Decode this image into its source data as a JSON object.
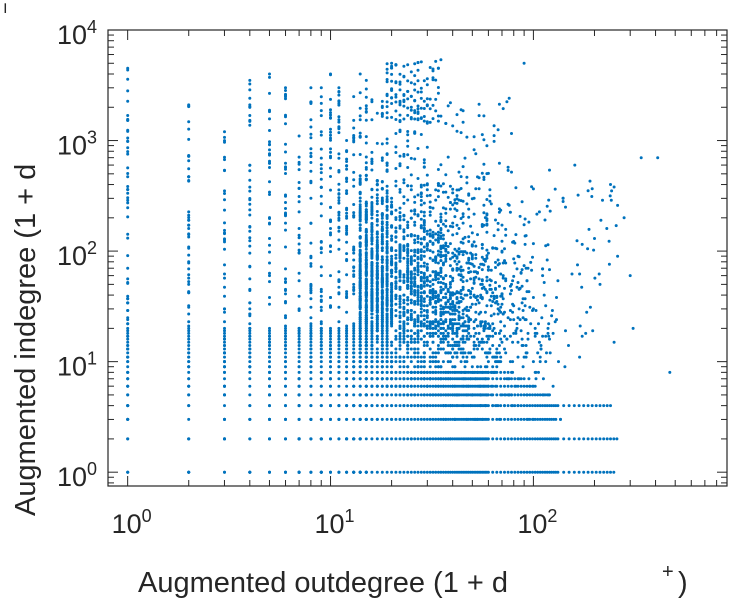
{
  "chart_data": {
    "type": "scatter",
    "title": "",
    "xlabel": "Augmented outdegree (1 + d",
    "xlabel_superscript": "+",
    "xlabel_close": ")",
    "ylabel": "Augmented indegree (1 + d",
    "ylabel_superscript": "−",
    "xscale": "log",
    "yscale": "log",
    "xlim": [
      0.8,
      900
    ],
    "ylim": [
      0.75,
      10000
    ],
    "grid": false,
    "legend": "none",
    "marker_color": "#0072BD",
    "x_ticks": [
      {
        "base": "10",
        "exp": "0",
        "value": 1
      },
      {
        "base": "10",
        "exp": "1",
        "value": 10
      },
      {
        "base": "10",
        "exp": "2",
        "value": 100
      }
    ],
    "y_ticks": [
      {
        "base": "10",
        "exp": "0",
        "value": 1
      },
      {
        "base": "10",
        "exp": "1",
        "value": 10
      },
      {
        "base": "10",
        "exp": "2",
        "value": 100
      },
      {
        "base": "10",
        "exp": "3",
        "value": 1000
      },
      {
        "base": "10",
        "exp": "4",
        "value": 10000
      }
    ],
    "columns": [
      {
        "x": 1,
        "ymin": 1,
        "ymax": 4500,
        "points": 70
      },
      {
        "x": 2,
        "ymin": 1,
        "ymax": 2100,
        "points": 60
      },
      {
        "x": 3,
        "ymin": 1,
        "ymax": 1200,
        "points": 55
      },
      {
        "x": 4,
        "ymin": 1,
        "ymax": 3500,
        "points": 55
      },
      {
        "x": 5,
        "ymin": 1,
        "ymax": 4000,
        "points": 55
      },
      {
        "x": 6,
        "ymin": 1,
        "ymax": 3000,
        "points": 55
      },
      {
        "x": 7,
        "ymin": 1,
        "ymax": 1100,
        "points": 55
      },
      {
        "x": 8,
        "ymin": 1,
        "ymax": 3000,
        "points": 55
      },
      {
        "x": 9,
        "ymin": 1,
        "ymax": 3000,
        "points": 55
      },
      {
        "x": 10,
        "ymin": 1,
        "ymax": 4000,
        "points": 60
      },
      {
        "x": 11,
        "ymin": 1,
        "ymax": 3000,
        "points": 60
      },
      {
        "x": 12,
        "ymin": 1,
        "ymax": 1000,
        "points": 60
      },
      {
        "x": 13,
        "ymin": 1,
        "ymax": 2500,
        "points": 60
      },
      {
        "x": 14,
        "ymin": 1,
        "ymax": 4000,
        "points": 60
      },
      {
        "x": 15,
        "ymin": 1,
        "ymax": 3500,
        "points": 60
      }
    ],
    "cluster": {
      "x_range": [
        14,
        120
      ],
      "y_range": [
        3,
        800
      ],
      "center": [
        25,
        40
      ],
      "points": 2600
    },
    "bottom_rows": [
      {
        "y": 1,
        "x_range": [
          16,
          250
        ]
      },
      {
        "y": 2,
        "x_range": [
          16,
          260
        ]
      },
      {
        "y": 3,
        "x_range": [
          16,
          130
        ]
      },
      {
        "y": 4,
        "x_range": [
          16,
          240
        ]
      },
      {
        "y": 5,
        "x_range": [
          16,
          120
        ]
      },
      {
        "y": 6,
        "x_range": [
          16,
          100
        ]
      },
      {
        "y": 7,
        "x_range": [
          16,
          90
        ]
      },
      {
        "y": 8,
        "x_range": [
          16,
          80
        ]
      }
    ],
    "top_cluster": {
      "x_range": [
        18,
        35
      ],
      "y_range": [
        1500,
        5500
      ],
      "points": 120
    },
    "outliers": [
      {
        "x": 340,
        "y": 700
      },
      {
        "x": 410,
        "y": 700
      },
      {
        "x": 240,
        "y": 400
      },
      {
        "x": 250,
        "y": 380
      },
      {
        "x": 190,
        "y": 430
      },
      {
        "x": 160,
        "y": 600
      },
      {
        "x": 470,
        "y": 8
      },
      {
        "x": 280,
        "y": 200
      },
      {
        "x": 230,
        "y": 160
      },
      {
        "x": 300,
        "y": 60
      },
      {
        "x": 310,
        "y": 20
      },
      {
        "x": 90,
        "y": 5000
      },
      {
        "x": 120,
        "y": 540
      },
      {
        "x": 140,
        "y": 300
      },
      {
        "x": 200,
        "y": 130
      },
      {
        "x": 260,
        "y": 90
      }
    ]
  }
}
